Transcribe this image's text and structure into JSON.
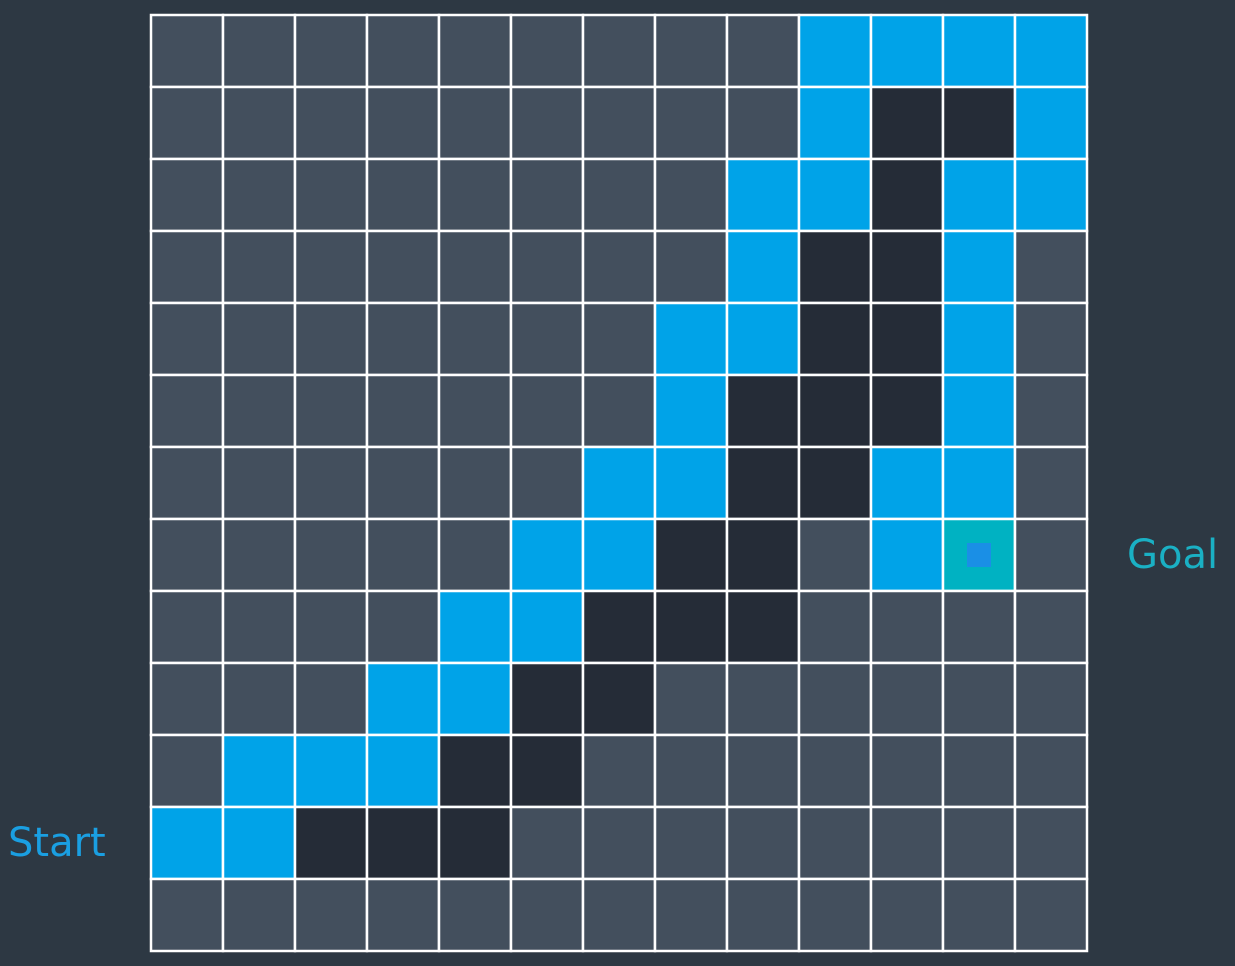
{
  "labels": {
    "start": "Start",
    "goal": "Goal"
  }
}
